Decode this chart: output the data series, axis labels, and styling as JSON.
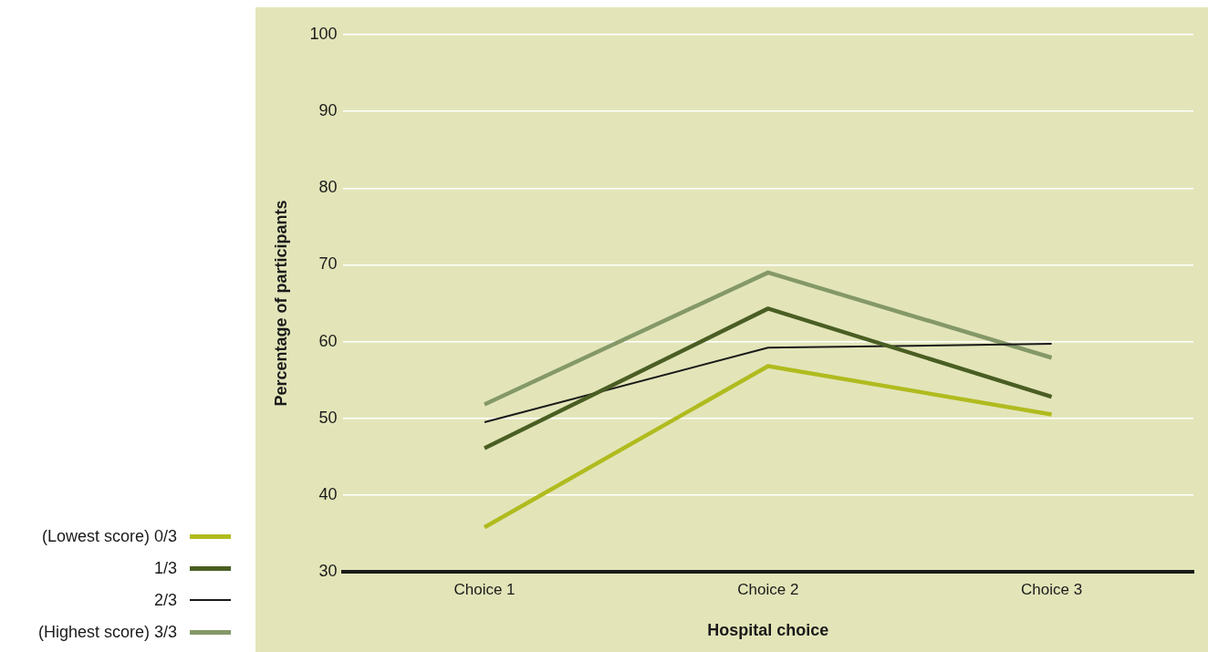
{
  "chart_data": {
    "type": "line",
    "xlabel": "Hospital choice",
    "ylabel": "Percentage of participants",
    "categories": [
      "Choice 1",
      "Choice 2",
      "Choice 3"
    ],
    "series": [
      {
        "name": "(Lowest score) 0/3",
        "color": "#b0bb1e",
        "values": [
          35.8,
          56.8,
          50.5
        ]
      },
      {
        "name": "1/3",
        "color": "#4a5e23",
        "values": [
          46.1,
          64.3,
          52.8
        ]
      },
      {
        "name": "2/3",
        "color": "#1a1a1a",
        "values": [
          49.5,
          59.2,
          59.7
        ]
      },
      {
        "name": "(Highest score) 3/3",
        "color": "#849868",
        "values": [
          51.8,
          69.0,
          57.9
        ]
      }
    ],
    "ylim": [
      30,
      100
    ],
    "yticks": [
      30,
      40,
      50,
      60,
      70,
      80,
      90,
      100
    ],
    "grid": "y",
    "legend": "bottom left",
    "marker": "none",
    "line_style": "solid"
  }
}
